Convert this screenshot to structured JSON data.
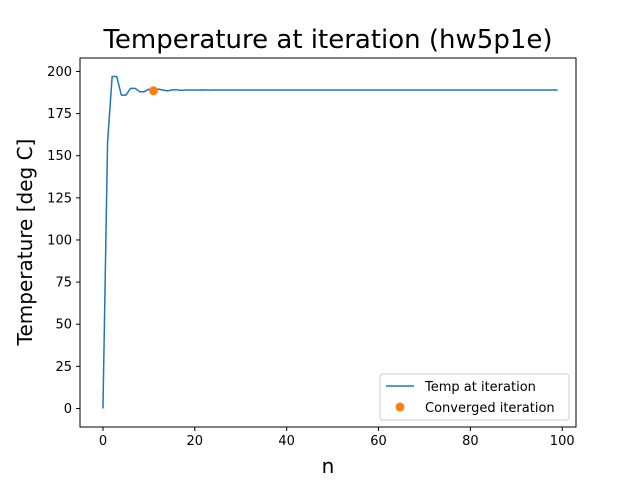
{
  "chart_data": {
    "type": "line",
    "title": "Temperature at iteration (hw5p1e)",
    "xlabel": "n",
    "ylabel": "Temperature [deg C]",
    "xlim": [
      -5,
      103
    ],
    "ylim": [
      -11,
      208
    ],
    "xticks": [
      0,
      20,
      40,
      60,
      80,
      100
    ],
    "yticks": [
      0,
      25,
      50,
      75,
      100,
      125,
      150,
      175,
      200
    ],
    "grid": false,
    "legend_position": "lower right",
    "series": [
      {
        "name": "Temp at iteration",
        "kind": "line",
        "color": "#1f77b4",
        "x": [
          0,
          1,
          2,
          3,
          4,
          5,
          6,
          7,
          8,
          9,
          10,
          11,
          12,
          13,
          14,
          15,
          16,
          17,
          18,
          19,
          20,
          21,
          22,
          23,
          24,
          25,
          26,
          27,
          28,
          29,
          30,
          31,
          32,
          33,
          34,
          35,
          36,
          37,
          38,
          39,
          40,
          41,
          42,
          43,
          44,
          45,
          46,
          47,
          48,
          49,
          50,
          51,
          52,
          53,
          54,
          55,
          56,
          57,
          58,
          59,
          60,
          61,
          62,
          63,
          64,
          65,
          66,
          67,
          68,
          69,
          70,
          71,
          72,
          73,
          74,
          75,
          76,
          77,
          78,
          79,
          80,
          81,
          82,
          83,
          84,
          85,
          86,
          87,
          88,
          89,
          90,
          91,
          92,
          93,
          94,
          95,
          96,
          97,
          98,
          99
        ],
        "y": [
          0,
          158,
          197,
          197,
          186,
          186,
          190,
          190,
          188,
          188,
          189.5,
          188.5,
          189.5,
          189,
          188.5,
          189,
          189.2,
          188.8,
          189,
          189,
          188.9,
          189,
          189.1,
          188.9,
          189,
          189,
          189,
          189,
          189,
          189,
          189,
          189,
          189,
          189,
          189,
          189,
          189,
          189,
          189,
          189,
          189,
          189,
          189,
          189,
          189,
          189,
          189,
          189,
          189,
          189,
          189,
          189,
          189,
          189,
          189,
          189,
          189,
          189,
          189,
          189,
          189,
          189,
          189,
          189,
          189,
          189,
          189,
          189,
          189,
          189,
          189,
          189,
          189,
          189,
          189,
          189,
          189,
          189,
          189,
          189,
          189,
          189,
          189,
          189,
          189,
          189,
          189,
          189,
          189,
          189,
          189,
          189,
          189,
          189,
          189,
          189,
          189,
          189,
          189,
          189
        ]
      },
      {
        "name": "Converged iteration",
        "kind": "scatter",
        "color": "#ff7f0e",
        "x": [
          11
        ],
        "y": [
          188.6
        ]
      }
    ]
  }
}
